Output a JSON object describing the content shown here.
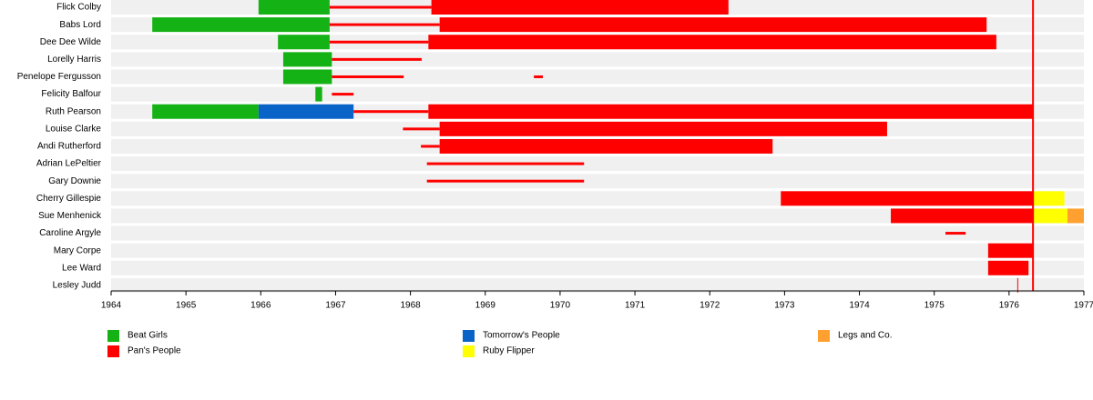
{
  "chart_data": {
    "type": "timeline",
    "xlim": [
      1964,
      1977
    ],
    "xticks": [
      1964,
      1965,
      1966,
      1967,
      1968,
      1969,
      1970,
      1971,
      1972,
      1973,
      1974,
      1975,
      1976,
      1977
    ],
    "series": [
      {
        "name": "Beat Girls",
        "color": "#14b214"
      },
      {
        "name": "Pan's People",
        "color": "#ff0000"
      },
      {
        "name": "Tomorrow's People",
        "color": "#0a64c8"
      },
      {
        "name": "Ruby Flipper",
        "color": "#ffff00"
      },
      {
        "name": "Legs and Co.",
        "color": "#ffa030"
      }
    ],
    "markers": [
      {
        "value": 1976.32,
        "color": "#ff0000"
      }
    ],
    "rows": [
      {
        "label": "Flick Colby",
        "segments": [
          {
            "start": 1965.97,
            "end": 1966.92,
            "color": "#14b214"
          },
          {
            "start": 1966.92,
            "end": 1968.28,
            "color": "#ff0000",
            "thin": true
          },
          {
            "start": 1968.28,
            "end": 1972.25,
            "color": "#ff0000"
          }
        ]
      },
      {
        "label": "Babs Lord",
        "segments": [
          {
            "start": 1964.55,
            "end": 1966.92,
            "color": "#14b214"
          },
          {
            "start": 1966.92,
            "end": 1968.39,
            "color": "#ff0000",
            "thin": true
          },
          {
            "start": 1968.39,
            "end": 1975.7,
            "color": "#ff0000"
          }
        ]
      },
      {
        "label": "Dee Dee Wilde",
        "segments": [
          {
            "start": 1966.23,
            "end": 1966.92,
            "color": "#14b214"
          },
          {
            "start": 1966.92,
            "end": 1968.24,
            "color": "#ff0000",
            "thin": true
          },
          {
            "start": 1968.24,
            "end": 1975.83,
            "color": "#ff0000"
          }
        ]
      },
      {
        "label": "Lorelly Harris",
        "segments": [
          {
            "start": 1966.3,
            "end": 1966.95,
            "color": "#14b214"
          },
          {
            "start": 1966.95,
            "end": 1968.15,
            "color": "#ff0000",
            "thin": true
          }
        ]
      },
      {
        "label": "Penelope Fergusson",
        "segments": [
          {
            "start": 1966.3,
            "end": 1966.95,
            "color": "#14b214"
          },
          {
            "start": 1966.95,
            "end": 1967.91,
            "color": "#ff0000",
            "thin": true
          },
          {
            "start": 1969.65,
            "end": 1969.77,
            "color": "#ff0000",
            "thin": true
          }
        ]
      },
      {
        "label": "Felicity Balfour",
        "segments": [
          {
            "start": 1966.73,
            "end": 1966.82,
            "color": "#14b214"
          },
          {
            "start": 1966.95,
            "end": 1967.24,
            "color": "#ff0000",
            "thin": true
          }
        ]
      },
      {
        "label": "Ruth Pearson",
        "segments": [
          {
            "start": 1964.55,
            "end": 1965.97,
            "color": "#14b214"
          },
          {
            "start": 1965.97,
            "end": 1967.24,
            "color": "#0a64c8"
          },
          {
            "start": 1967.24,
            "end": 1968.24,
            "color": "#ff0000",
            "thin": true
          },
          {
            "start": 1968.24,
            "end": 1976.32,
            "color": "#ff0000"
          }
        ]
      },
      {
        "label": "Louise Clarke",
        "segments": [
          {
            "start": 1967.9,
            "end": 1968.39,
            "color": "#ff0000",
            "thin": true
          },
          {
            "start": 1968.39,
            "end": 1974.37,
            "color": "#ff0000"
          }
        ]
      },
      {
        "label": "Andi Rutherford",
        "segments": [
          {
            "start": 1968.14,
            "end": 1968.39,
            "color": "#ff0000",
            "thin": true
          },
          {
            "start": 1968.39,
            "end": 1972.84,
            "color": "#ff0000"
          }
        ]
      },
      {
        "label": "Adrian LePeltier",
        "segments": [
          {
            "start": 1968.22,
            "end": 1970.32,
            "color": "#ff0000",
            "thin": true
          }
        ]
      },
      {
        "label": "Gary Downie",
        "segments": [
          {
            "start": 1968.22,
            "end": 1970.32,
            "color": "#ff0000",
            "thin": true
          }
        ]
      },
      {
        "label": "Cherry Gillespie",
        "segments": [
          {
            "start": 1972.95,
            "end": 1976.32,
            "color": "#ff0000"
          },
          {
            "start": 1976.32,
            "end": 1976.74,
            "color": "#ffff00"
          }
        ]
      },
      {
        "label": "Sue Menhenick",
        "segments": [
          {
            "start": 1974.42,
            "end": 1976.32,
            "color": "#ff0000"
          },
          {
            "start": 1976.32,
            "end": 1976.78,
            "color": "#ffff00"
          },
          {
            "start": 1976.78,
            "end": 1977,
            "color": "#ffa030"
          }
        ]
      },
      {
        "label": "Caroline Argyle",
        "segments": [
          {
            "start": 1975.15,
            "end": 1975.42,
            "color": "#ff0000",
            "thin": true
          }
        ]
      },
      {
        "label": "Mary Corpe",
        "segments": [
          {
            "start": 1975.72,
            "end": 1976.32,
            "color": "#ff0000"
          }
        ]
      },
      {
        "label": "Lee Ward",
        "segments": [
          {
            "start": 1975.72,
            "end": 1976.26,
            "color": "#ff0000"
          }
        ]
      },
      {
        "label": "Lesley Judd",
        "segments": [
          {
            "start": 1976.11,
            "end": 1976.12,
            "color": "#ff0000"
          }
        ]
      }
    ]
  }
}
